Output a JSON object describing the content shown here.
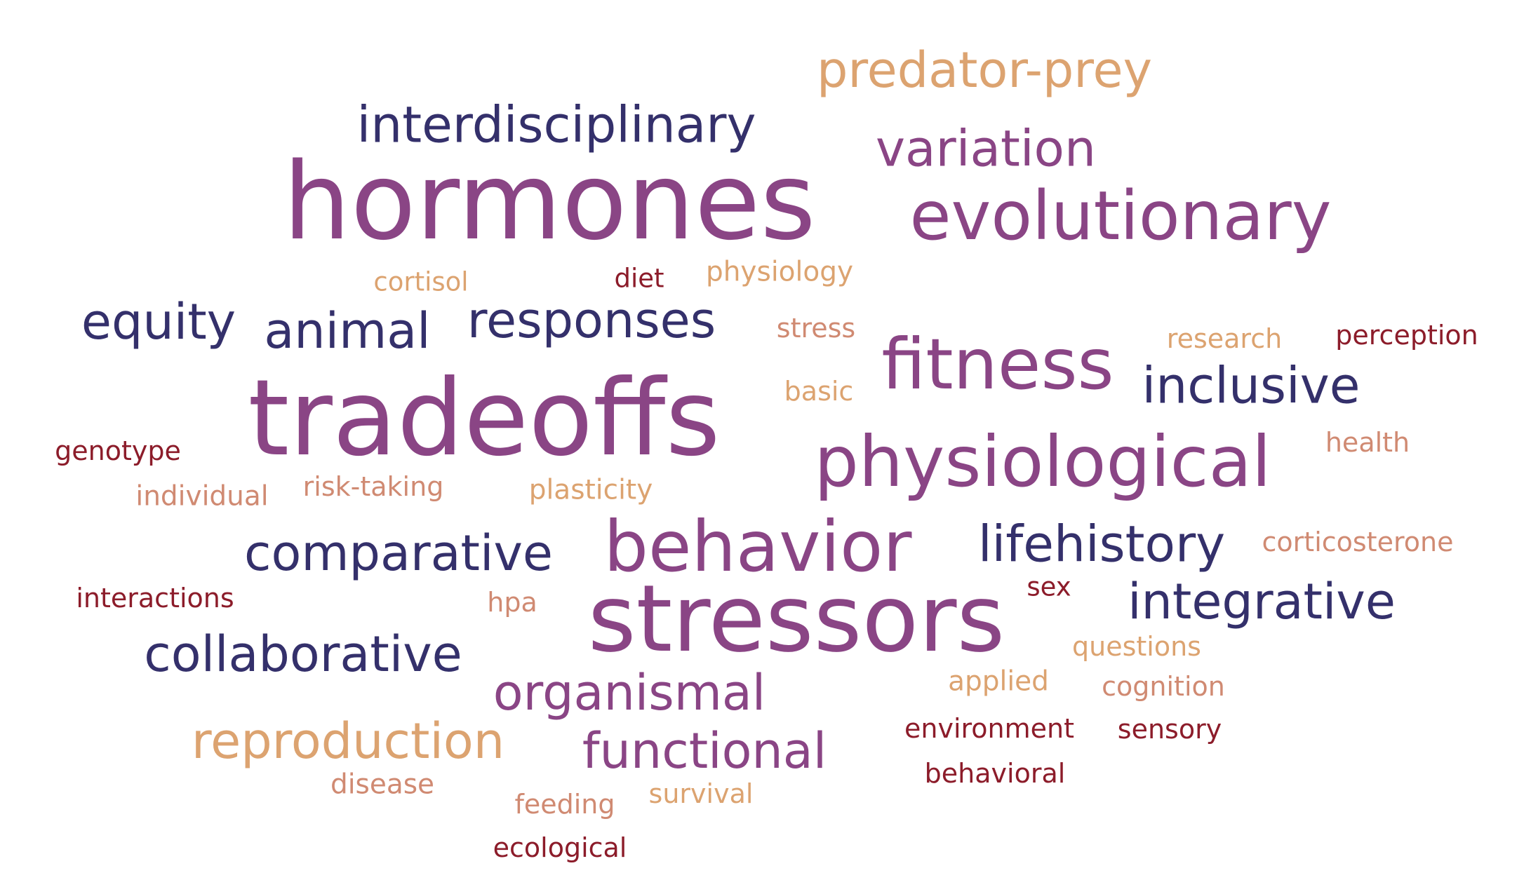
{
  "palette": {
    "indigo": "#34306b",
    "plum": "#8a4585",
    "sand": "#dca370",
    "rose": "#d08a72",
    "wine": "#8c1c2a"
  },
  "words": [
    {
      "text": "predator-prey",
      "tone": "sand"
    },
    {
      "text": "interdisciplinary",
      "tone": "indigo"
    },
    {
      "text": "variation",
      "tone": "plum"
    },
    {
      "text": "hormones",
      "tone": "plum"
    },
    {
      "text": "evolutionary",
      "tone": "plum"
    },
    {
      "text": "cortisol",
      "tone": "sand"
    },
    {
      "text": "diet",
      "tone": "wine"
    },
    {
      "text": "physiology",
      "tone": "sand"
    },
    {
      "text": "equity",
      "tone": "indigo"
    },
    {
      "text": "animal",
      "tone": "indigo"
    },
    {
      "text": "responses",
      "tone": "indigo"
    },
    {
      "text": "stress",
      "tone": "rose"
    },
    {
      "text": "research",
      "tone": "sand"
    },
    {
      "text": "perception",
      "tone": "wine"
    },
    {
      "text": "fitness",
      "tone": "plum"
    },
    {
      "text": "inclusive",
      "tone": "indigo"
    },
    {
      "text": "tradeoffs",
      "tone": "plum"
    },
    {
      "text": "basic",
      "tone": "sand"
    },
    {
      "text": "genotype",
      "tone": "wine"
    },
    {
      "text": "physiological",
      "tone": "plum"
    },
    {
      "text": "health",
      "tone": "rose"
    },
    {
      "text": "individual",
      "tone": "rose"
    },
    {
      "text": "risk-taking",
      "tone": "rose"
    },
    {
      "text": "plasticity",
      "tone": "sand"
    },
    {
      "text": "behavior",
      "tone": "plum"
    },
    {
      "text": "comparative",
      "tone": "indigo"
    },
    {
      "text": "lifehistory",
      "tone": "indigo"
    },
    {
      "text": "corticosterone",
      "tone": "rose"
    },
    {
      "text": "interactions",
      "tone": "wine"
    },
    {
      "text": "hpa",
      "tone": "rose"
    },
    {
      "text": "stressors",
      "tone": "plum"
    },
    {
      "text": "sex",
      "tone": "wine"
    },
    {
      "text": "integrative",
      "tone": "indigo"
    },
    {
      "text": "collaborative",
      "tone": "indigo"
    },
    {
      "text": "questions",
      "tone": "sand"
    },
    {
      "text": "organismal",
      "tone": "plum"
    },
    {
      "text": "applied",
      "tone": "sand"
    },
    {
      "text": "cognition",
      "tone": "rose"
    },
    {
      "text": "reproduction",
      "tone": "sand"
    },
    {
      "text": "functional",
      "tone": "plum"
    },
    {
      "text": "environment",
      "tone": "wine"
    },
    {
      "text": "sensory",
      "tone": "wine"
    },
    {
      "text": "behavioral",
      "tone": "wine"
    },
    {
      "text": "disease",
      "tone": "rose"
    },
    {
      "text": "survival",
      "tone": "sand"
    },
    {
      "text": "feeding",
      "tone": "rose"
    },
    {
      "text": "ecological",
      "tone": "wine"
    }
  ]
}
